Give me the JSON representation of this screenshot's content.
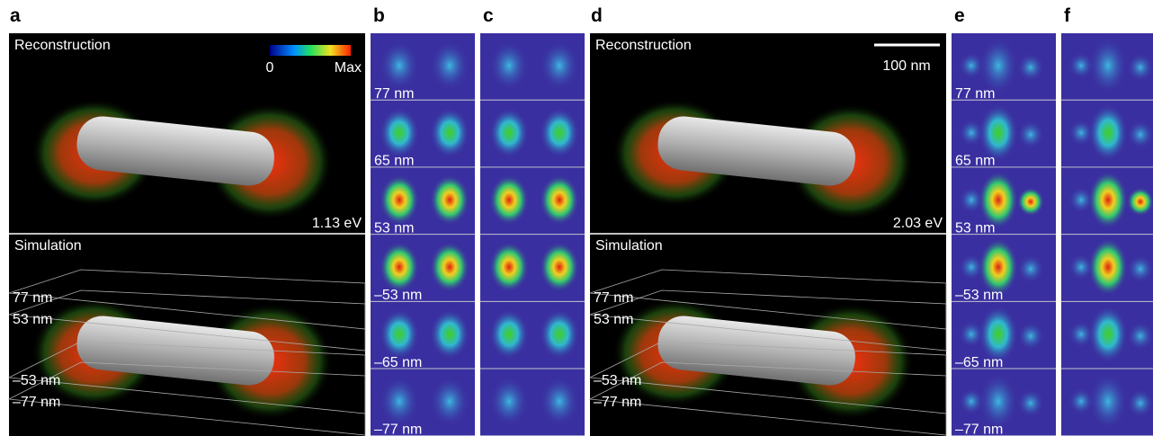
{
  "a": {
    "label": "a",
    "reconstruction": "Reconstruction",
    "colorbar_min": "0",
    "colorbar_max": "Max",
    "energy": "1.13 eV",
    "simulation": "Simulation",
    "planes": [
      "77 nm",
      "53 nm",
      "–53 nm",
      "–77 nm"
    ]
  },
  "b": {
    "label": "b",
    "slices": [
      "77 nm",
      "65 nm",
      "53 nm",
      "–53 nm",
      "–65 nm",
      "–77 nm"
    ]
  },
  "c": {
    "label": "c"
  },
  "d": {
    "label": "d",
    "reconstruction": "Reconstruction",
    "scale_bar": "100 nm",
    "energy": "2.03 eV",
    "simulation": "Simulation",
    "planes": [
      "77 nm",
      "53 nm",
      "–53 nm",
      "–77 nm"
    ]
  },
  "e": {
    "label": "e",
    "slices": [
      "77 nm",
      "65 nm",
      "53 nm",
      "–53 nm",
      "–65 nm",
      "–77 nm"
    ]
  },
  "f": {
    "label": "f"
  }
}
